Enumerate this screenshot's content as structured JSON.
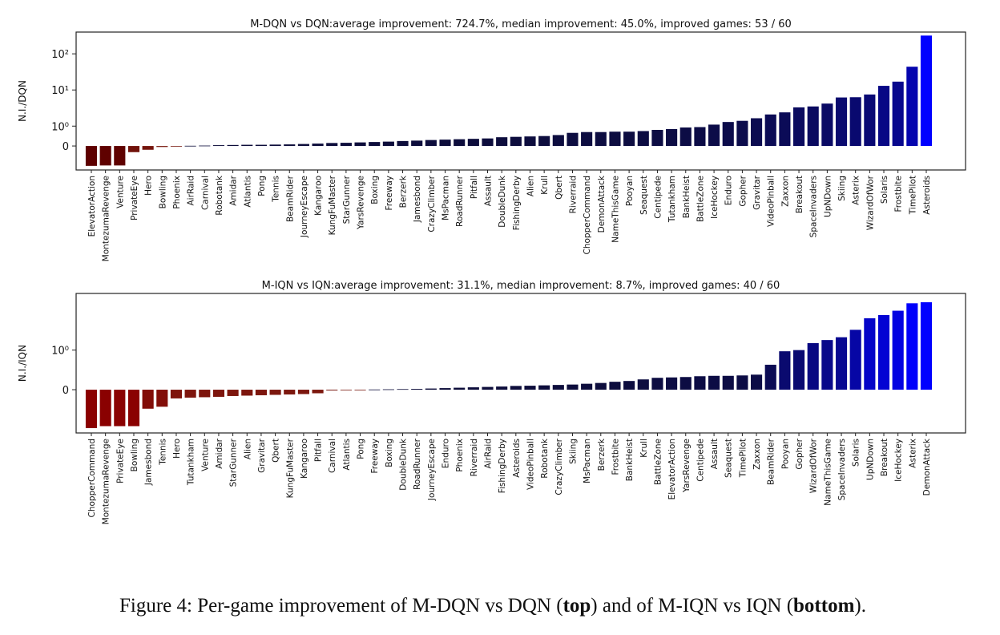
{
  "chart_data": [
    {
      "type": "bar",
      "title": "M-DQN vs DQN:average improvement: 724.7%, median improvement: 45.0%, improved games: 53 / 60",
      "y_label": "N.I./DQN",
      "yscale": "symlog",
      "linthresh": 1,
      "linscale": 0.55,
      "categories": [
        "ElevatorAction",
        "MontezumaRevenge",
        "Venture",
        "PrivateEye",
        "Hero",
        "Bowling",
        "Phoenix",
        "AirRaid",
        "Carnival",
        "Robotank",
        "Amidar",
        "Atlantis",
        "Pong",
        "Tennis",
        "BeamRider",
        "JourneyEscape",
        "Kangaroo",
        "KungFuMaster",
        "StarGunner",
        "YarsRevenge",
        "Boxing",
        "Freeway",
        "Berzerk",
        "Jamesbond",
        "CrazyClimber",
        "MsPacman",
        "RoadRunner",
        "Pitfall",
        "Assault",
        "DoubleDunk",
        "FishingDerby",
        "Alien",
        "Krull",
        "Qbert",
        "Riverraid",
        "ChopperCommand",
        "DemonAttack",
        "NameThisGame",
        "Pooyan",
        "Seaquest",
        "Centipede",
        "Tutankham",
        "BankHeist",
        "BattleZone",
        "IceHockey",
        "Enduro",
        "Gopher",
        "Gravitar",
        "VideoPinball",
        "Zaxxon",
        "Breakout",
        "SpaceInvaders",
        "UpNDown",
        "Skiing",
        "Asterix",
        "WizardOfWor",
        "Solaris",
        "Frostbite",
        "TimePilot",
        "Asteroids"
      ],
      "values": [
        -1,
        -0.98,
        -0.98,
        -0.31,
        -0.19,
        -0.05,
        -0.03,
        0.01,
        0.02,
        0.04,
        0.05,
        0.06,
        0.06,
        0.07,
        0.08,
        0.1,
        0.12,
        0.15,
        0.16,
        0.18,
        0.2,
        0.22,
        0.25,
        0.27,
        0.3,
        0.32,
        0.34,
        0.36,
        0.38,
        0.44,
        0.46,
        0.48,
        0.5,
        0.55,
        0.66,
        0.7,
        0.7,
        0.72,
        0.72,
        0.75,
        0.81,
        0.85,
        0.93,
        0.95,
        1.1,
        1.3,
        1.4,
        1.65,
        2.1,
        2.4,
        3.3,
        3.5,
        4.2,
        6.2,
        6.3,
        7.5,
        13,
        17,
        44,
        320
      ],
      "colors": {
        "negative": [
          "#5e0000",
          "#7a1a10"
        ],
        "positive": [
          "#0d0d3a",
          "#0000ff"
        ]
      },
      "ylim": [
        -1.3,
        400
      ],
      "yticks": [
        0,
        {
          "value": 1,
          "label": "10⁰"
        },
        {
          "value": 10,
          "label": "10¹"
        },
        {
          "value": 100,
          "label": "10²"
        }
      ]
    },
    {
      "type": "bar",
      "title": "M-IQN vs IQN:average improvement: 31.1%, median improvement: 8.7%, improved games: 40 / 60",
      "y_label": "N.I./IQN",
      "yscale": "symlog",
      "linthresh": 1,
      "linscale": 0.45,
      "categories": [
        "ChopperCommand",
        "MontezumaRevenge",
        "PrivateEye",
        "Bowling",
        "Jamesbond",
        "Tennis",
        "Hero",
        "Tutankham",
        "Venture",
        "Amidar",
        "StarGunner",
        "Alien",
        "Gravitar",
        "Qbert",
        "KungFuMaster",
        "Kangaroo",
        "Pitfall",
        "Carnival",
        "Atlantis",
        "Pong",
        "Freeway",
        "Boxing",
        "DoubleDunk",
        "RoadRunner",
        "JourneyEscape",
        "Enduro",
        "Phoenix",
        "Riverraid",
        "AirRaid",
        "FishingDerby",
        "Asteroids",
        "VideoPinball",
        "Robotank",
        "CrazyClimber",
        "Skiing",
        "MsPacman",
        "Berzerk",
        "Frostbite",
        "BankHeist",
        "Krull",
        "BattleZone",
        "ElevatorAction",
        "YarsRevenge",
        "Centipede",
        "Assault",
        "Seaquest",
        "TimePilot",
        "Zaxxon",
        "BeamRider",
        "Pooyan",
        "Gopher",
        "WizardOfWor",
        "NameThisGame",
        "SpaceInvaders",
        "Solaris",
        "UpNDown",
        "Breakout",
        "IceHockey",
        "Asterix",
        "DemonAttack"
      ],
      "values": [
        -0.97,
        -0.92,
        -0.92,
        -0.92,
        -0.48,
        -0.43,
        -0.22,
        -0.2,
        -0.19,
        -0.18,
        -0.16,
        -0.15,
        -0.14,
        -0.13,
        -0.12,
        -0.11,
        -0.09,
        -0.02,
        -0.015,
        -0.01,
        0.005,
        0.01,
        0.015,
        0.02,
        0.03,
        0.04,
        0.05,
        0.06,
        0.07,
        0.08,
        0.095,
        0.1,
        0.11,
        0.12,
        0.13,
        0.15,
        0.17,
        0.2,
        0.22,
        0.26,
        0.3,
        0.31,
        0.32,
        0.34,
        0.35,
        0.35,
        0.36,
        0.38,
        0.63,
        0.97,
        1.0,
        1.2,
        1.3,
        1.4,
        1.7,
        2.3,
        2.5,
        2.8,
        3.4,
        3.5
      ],
      "colors": {
        "negative": [
          "#8b0000",
          "#7a1a10"
        ],
        "positive": [
          "#0d0d3a",
          "#0000ff"
        ]
      },
      "ylim": [
        -1.1,
        4.4
      ],
      "yticks": [
        0,
        {
          "value": 1,
          "label": "10⁰"
        }
      ]
    }
  ],
  "caption": [
    {
      "text": "Figure 4: Per-game improvement of M-DQN vs DQN ("
    },
    {
      "text": "top",
      "bold": true
    },
    {
      "text": ") and of M-IQN vs IQN ("
    },
    {
      "text": "bottom",
      "bold": true
    },
    {
      "text": ")."
    }
  ]
}
